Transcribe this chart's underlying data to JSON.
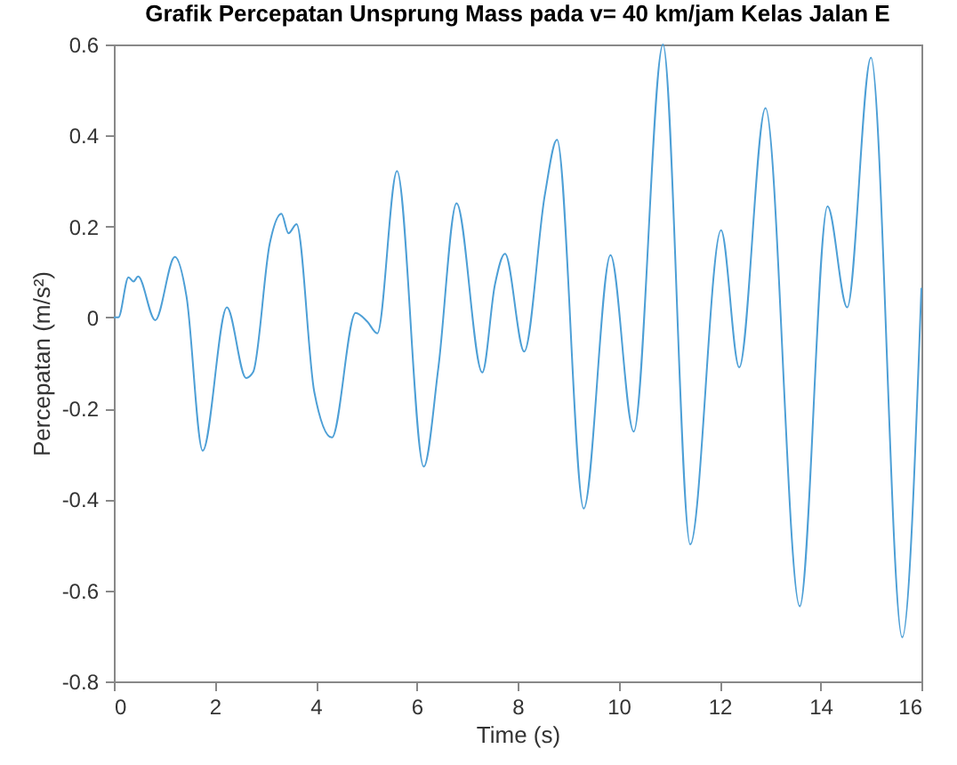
{
  "chart_data": {
    "type": "line",
    "title": "Grafik Percepatan Unsprung Mass pada v= 40 km/jam Kelas Jalan E",
    "xlabel": "Time (s)",
    "ylabel": "Percepatan (m/s²)",
    "series": [
      {
        "color": "#4d9fd6",
        "x": [
          0,
          0.09,
          0.29,
          0.39,
          0.48,
          0.82,
          1.21,
          1.44,
          1.76,
          2.24,
          2.62,
          2.76,
          3.09,
          3.32,
          3.46,
          3.62,
          3.97,
          4.32,
          4.79,
          5.02,
          5.22,
          5.61,
          6.14,
          6.43,
          6.79,
          7.3,
          7.55,
          7.75,
          8.13,
          8.54,
          8.78,
          9.31,
          9.84,
          10.3,
          10.88,
          11.42,
          12.03,
          12.39,
          12.91,
          13.59,
          14.14,
          14.53,
          15.0,
          15.62,
          16.0
        ],
        "values": [
          0,
          0.0,
          0.088,
          0.079,
          0.09,
          -0.006,
          0.133,
          0.046,
          -0.293,
          0.022,
          -0.133,
          -0.12,
          0.163,
          0.228,
          0.185,
          0.205,
          -0.163,
          -0.264,
          0.01,
          -0.009,
          -0.035,
          0.322,
          -0.328,
          -0.11,
          0.251,
          -0.121,
          0.072,
          0.14,
          -0.075,
          0.27,
          0.391,
          -0.42,
          0.137,
          -0.251,
          0.6,
          -0.499,
          0.192,
          -0.11,
          0.46,
          -0.635,
          0.244,
          0.022,
          0.571,
          -0.703,
          0.065
        ]
      }
    ],
    "xlim": [
      0,
      16
    ],
    "xticks": [
      0,
      2,
      4,
      6,
      8,
      10,
      12,
      14,
      16
    ],
    "ylim": [
      -0.8,
      0.6
    ],
    "yticks": [
      -0.8,
      -0.6,
      -0.4,
      -0.2,
      0,
      0.2,
      0.4,
      0.6
    ],
    "grid": false,
    "marker": "none",
    "line_style": "solid"
  }
}
